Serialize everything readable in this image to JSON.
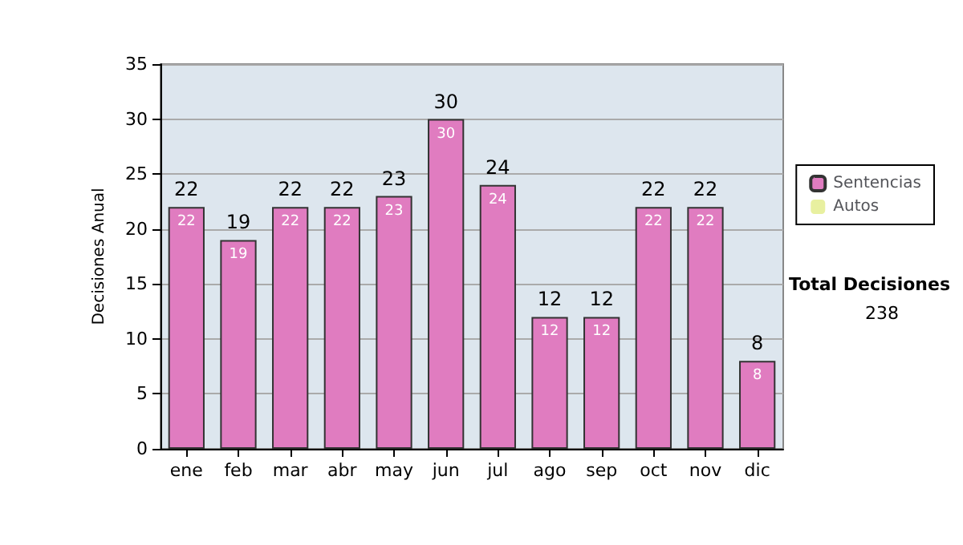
{
  "chart_data": {
    "type": "bar",
    "stacked": true,
    "ylabel": "Decisiones Anual",
    "categories": [
      "ene",
      "feb",
      "mar",
      "abr",
      "may",
      "jun",
      "jul",
      "ago",
      "sep",
      "oct",
      "nov",
      "dic"
    ],
    "series": [
      {
        "name": "Sentencias",
        "color": "#e07cc0",
        "values": [
          22,
          19,
          22,
          22,
          23,
          30,
          24,
          12,
          12,
          22,
          22,
          8
        ],
        "value_labels": [
          "22",
          "19",
          "22",
          "22",
          "23",
          "30",
          "24",
          "12",
          "12",
          "22",
          "22",
          "8"
        ]
      },
      {
        "name": "Autos",
        "color": "#e8f0a0",
        "values": [
          0,
          0,
          0,
          0,
          0,
          0,
          0,
          0,
          0,
          0,
          0,
          0
        ]
      }
    ],
    "totals": [
      "22",
      "19",
      "22",
      "22",
      "23",
      "30",
      "24",
      "12",
      "12",
      "22",
      "22",
      "8"
    ],
    "ylim": [
      0,
      35
    ],
    "yticks": [
      0,
      5,
      10,
      15,
      20,
      25,
      30,
      35
    ],
    "grid": "y",
    "legend": "right",
    "annotations": [
      "Total Decisiones",
      "238"
    ]
  }
}
